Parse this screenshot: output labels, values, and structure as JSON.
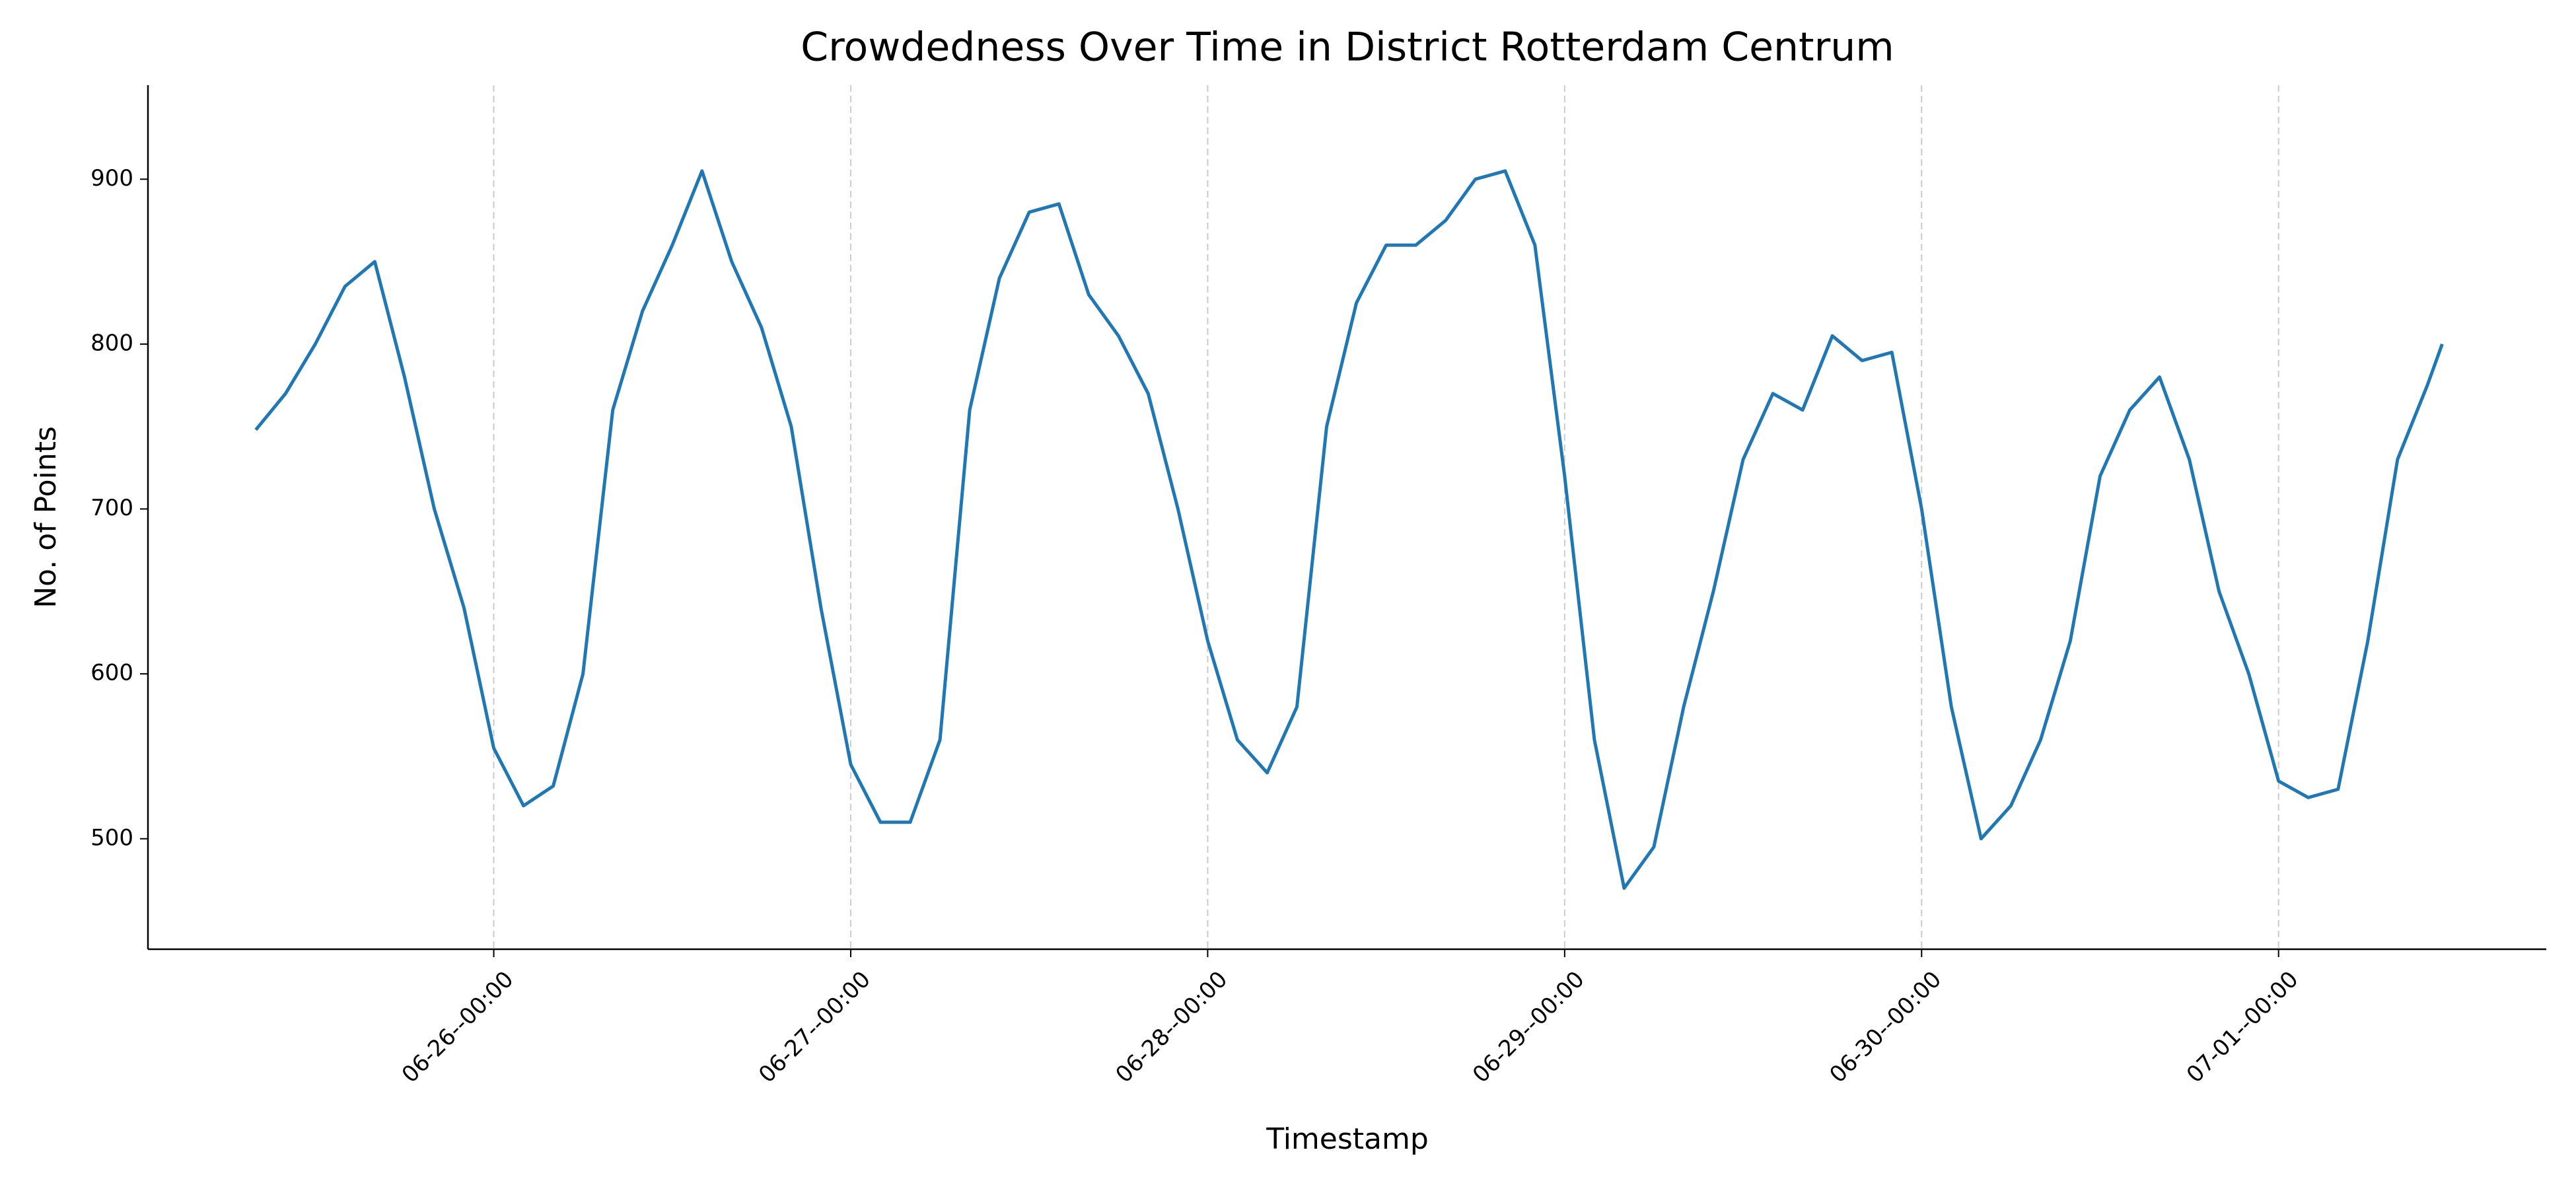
{
  "chart_data": {
    "type": "line",
    "title": "Crowdedness Over Time in District Rotterdam Centrum",
    "x_label": "Timestamp",
    "y_label": "No. of Points",
    "x": [
      "06-25--08:00",
      "06-25--10:00",
      "06-25--12:00",
      "06-25--14:00",
      "06-25--16:00",
      "06-25--18:00",
      "06-25--20:00",
      "06-25--22:00",
      "06-26--00:00",
      "06-26--02:00",
      "06-26--04:00",
      "06-26--06:00",
      "06-26--08:00",
      "06-26--10:00",
      "06-26--12:00",
      "06-26--14:00",
      "06-26--16:00",
      "06-26--18:00",
      "06-26--20:00",
      "06-26--22:00",
      "06-27--00:00",
      "06-27--02:00",
      "06-27--04:00",
      "06-27--06:00",
      "06-27--08:00",
      "06-27--10:00",
      "06-27--12:00",
      "06-27--14:00",
      "06-27--16:00",
      "06-27--18:00",
      "06-27--20:00",
      "06-27--22:00",
      "06-28--00:00",
      "06-28--02:00",
      "06-28--04:00",
      "06-28--06:00",
      "06-28--08:00",
      "06-28--10:00",
      "06-28--12:00",
      "06-28--14:00",
      "06-28--16:00",
      "06-28--18:00",
      "06-28--20:00",
      "06-28--22:00",
      "06-29--00:00",
      "06-29--02:00",
      "06-29--04:00",
      "06-29--06:00",
      "06-29--08:00",
      "06-29--10:00",
      "06-29--12:00",
      "06-29--14:00",
      "06-29--16:00",
      "06-29--18:00",
      "06-29--20:00",
      "06-29--22:00",
      "06-30--00:00",
      "06-30--02:00",
      "06-30--04:00",
      "06-30--06:00",
      "06-30--08:00",
      "06-30--10:00",
      "06-30--12:00",
      "06-30--14:00",
      "06-30--16:00",
      "06-30--18:00",
      "06-30--20:00",
      "06-30--22:00",
      "07-01--00:00",
      "07-01--02:00",
      "07-01--04:00",
      "07-01--06:00",
      "07-01--08:00",
      "07-01--10:00",
      "07-01--11:00"
    ],
    "series": [
      {
        "name": "Crowdedness",
        "color": "#1f77b4",
        "values": [
          748,
          770,
          800,
          835,
          850,
          780,
          700,
          640,
          555,
          520,
          532,
          600,
          760,
          820,
          860,
          905,
          850,
          810,
          750,
          640,
          545,
          510,
          510,
          560,
          760,
          840,
          880,
          885,
          830,
          805,
          770,
          700,
          620,
          560,
          540,
          580,
          750,
          825,
          860,
          860,
          875,
          900,
          905,
          860,
          720,
          560,
          470,
          495,
          580,
          650,
          730,
          770,
          760,
          805,
          790,
          795,
          700,
          580,
          500,
          520,
          560,
          620,
          720,
          760,
          780,
          730,
          650,
          600,
          535,
          525,
          530,
          620,
          730,
          775,
          800
        ]
      }
    ],
    "xlim": [
      "06-25--00:45",
      "07-01--18:00"
    ],
    "xticks": [
      "06-26--00:00",
      "06-27--00:00",
      "06-28--00:00",
      "06-29--00:00",
      "06-30--00:00",
      "07-01--00:00"
    ],
    "ylim": [
      433,
      957
    ],
    "yticks": [
      500,
      600,
      700,
      800,
      900
    ],
    "x_grid": true
  }
}
